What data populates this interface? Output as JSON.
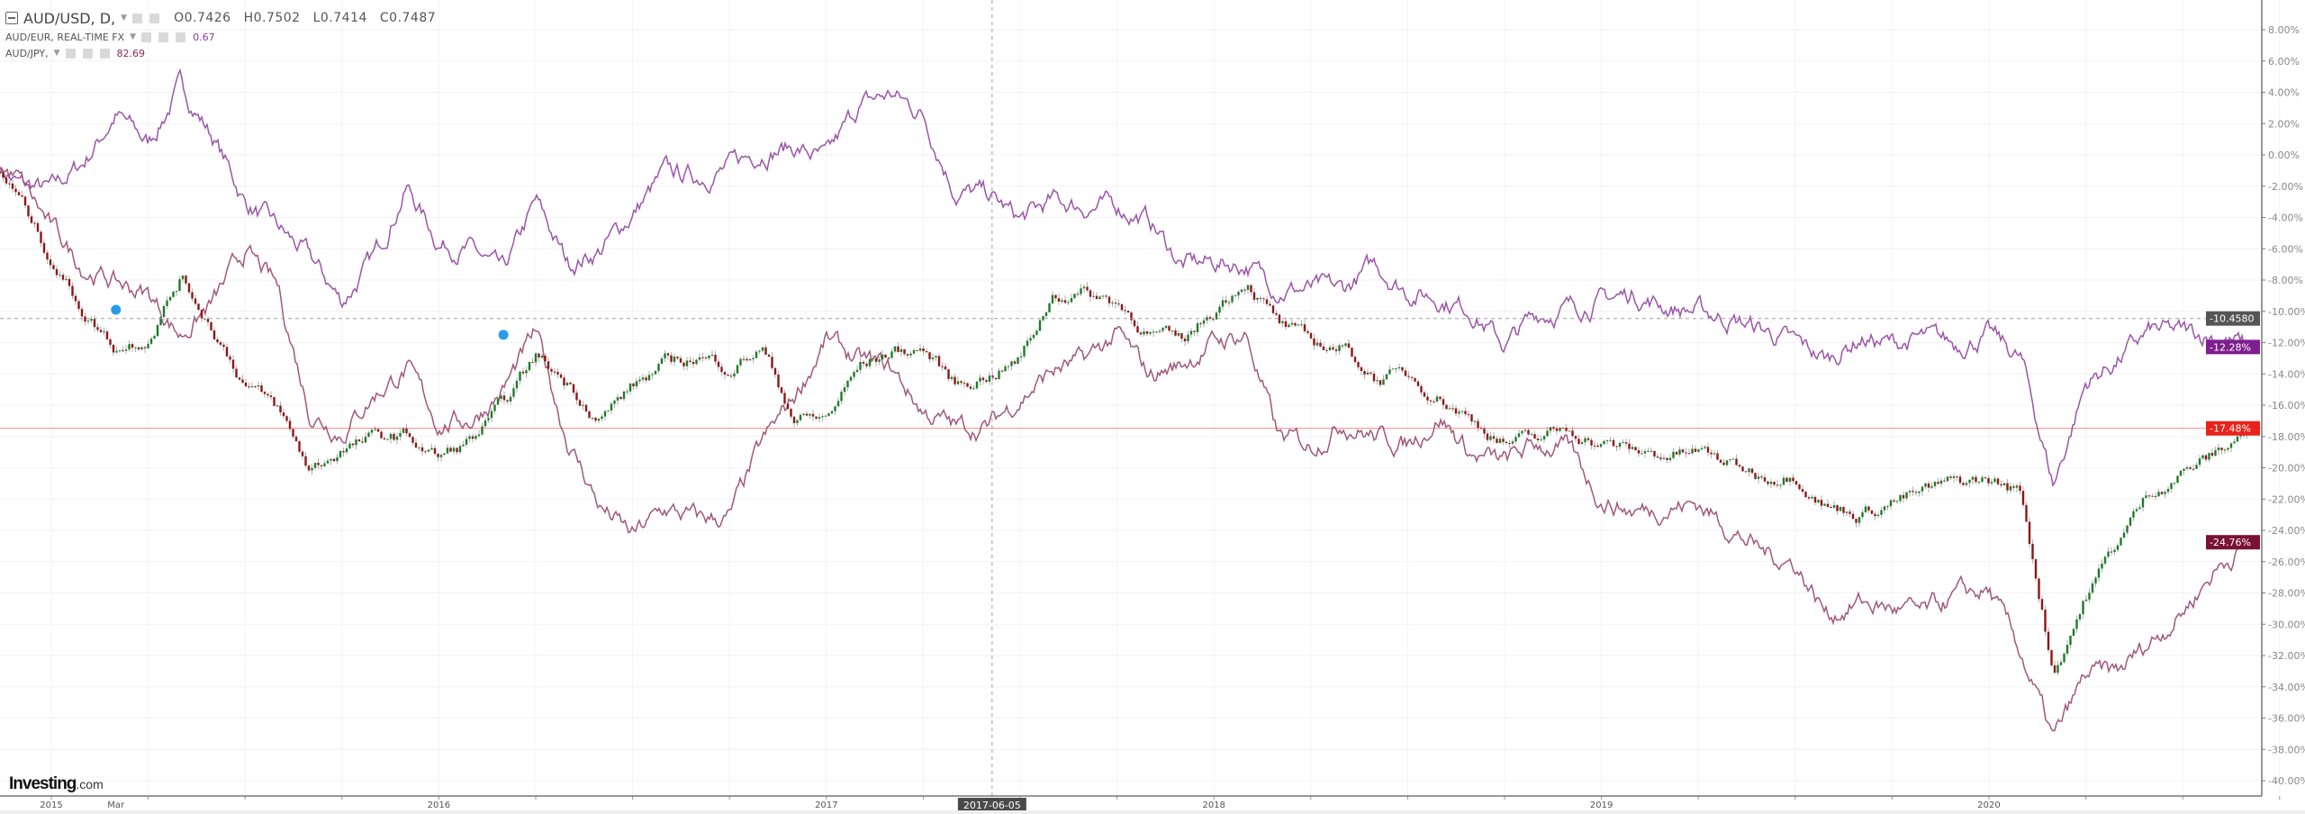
{
  "legend": {
    "main": {
      "symbol": "AUD/USD, D,",
      "open": "O0.7426",
      "high": "H0.7502",
      "low": "L0.7414",
      "close": "C0.7487"
    },
    "series2": {
      "symbol": "AUD/EUR, REAL-TIME FX",
      "value": "0.67"
    },
    "series3": {
      "symbol": "AUD/JPY,",
      "value": "82.69"
    }
  },
  "logo": {
    "brand": "Investing",
    "suffix": ".com"
  },
  "colors": {
    "up_candle": "#1f7a2a",
    "down_candle": "#8e1616",
    "wick": "#9a9a9a",
    "aud_eur": "#9b55a8",
    "aud_jpy": "#a0587b",
    "last_price_line": "#e8231b",
    "crosshair": "#9e9e9e",
    "event_marker": "#2a9be8"
  },
  "chart_data": {
    "type": "line",
    "yscale": "percent change",
    "ylim": [
      -41,
      9.5
    ],
    "yticks": [
      "8.00%",
      "6.00%",
      "4.00%",
      "2.00%",
      "0.00%",
      "-2.00%",
      "-4.00%",
      "-6.00%",
      "-8.00%",
      "-10.00%",
      "-12.00%",
      "-14.00%",
      "-16.00%",
      "-18.00%",
      "-20.00%",
      "-22.00%",
      "-24.00%",
      "-26.00%",
      "-28.00%",
      "-30.00%",
      "-32.00%",
      "-34.00%",
      "-36.00%",
      "-38.00%",
      "-40.00%"
    ],
    "xticks": [
      {
        "label": "2015",
        "date": "2015-01"
      },
      {
        "label": "Mar",
        "date": "2015-03"
      },
      {
        "label": "2016",
        "date": "2016-01"
      },
      {
        "label": "2017",
        "date": "2017-01"
      },
      {
        "label": "2018",
        "date": "2018-01"
      },
      {
        "label": "2019",
        "date": "2019-01"
      },
      {
        "label": "2020",
        "date": "2020-01"
      }
    ],
    "grid": true,
    "crosshair": {
      "date": "2017-06-05",
      "date_label": "2017-06-05",
      "value": -10.458,
      "value_label": "-10.4580"
    },
    "dates": [
      "2014-11",
      "2014-12",
      "2015-01",
      "2015-02",
      "2015-03",
      "2015-04",
      "2015-05",
      "2015-06",
      "2015-07",
      "2015-08",
      "2015-09",
      "2015-10",
      "2015-11",
      "2015-12",
      "2016-01",
      "2016-02",
      "2016-03",
      "2016-04",
      "2016-05",
      "2016-06",
      "2016-07",
      "2016-08",
      "2016-09",
      "2016-10",
      "2016-11",
      "2016-12",
      "2017-01",
      "2017-02",
      "2017-03",
      "2017-04",
      "2017-05",
      "2017-06",
      "2017-07",
      "2017-08",
      "2017-09",
      "2017-10",
      "2017-11",
      "2017-12",
      "2018-01",
      "2018-02",
      "2018-03",
      "2018-04",
      "2018-05",
      "2018-06",
      "2018-07",
      "2018-08",
      "2018-09",
      "2018-10",
      "2018-11",
      "2018-12",
      "2019-01",
      "2019-02",
      "2019-03",
      "2019-04",
      "2019-05",
      "2019-06",
      "2019-07",
      "2019-08",
      "2019-09",
      "2019-10",
      "2019-11",
      "2019-12",
      "2020-01",
      "2020-02",
      "2020-03",
      "2020-04",
      "2020-05",
      "2020-06",
      "2020-07",
      "2020-08",
      "2020-09"
    ],
    "series": [
      {
        "name": "AUD/USD",
        "style": "candlestick",
        "last_label": "-17.48%",
        "values": [
          0,
          -2.8,
          -6.6,
          -9.9,
          -12.3,
          -11.5,
          -7.8,
          -11.0,
          -14.6,
          -16.3,
          -20.2,
          -18.8,
          -18.2,
          -18.0,
          -19.4,
          -18.3,
          -16.2,
          -12.9,
          -14.6,
          -16.7,
          -14.8,
          -13.5,
          -12.9,
          -13.5,
          -12.3,
          -16.8,
          -16.9,
          -13.6,
          -12.6,
          -12.4,
          -14.7,
          -14.0,
          -13.1,
          -8.9,
          -8.8,
          -9.4,
          -11.3,
          -12.1,
          -9.9,
          -7.8,
          -10.8,
          -12.2,
          -12.3,
          -14.2,
          -14.2,
          -15.3,
          -16.9,
          -18.3,
          -18.3,
          -17.5,
          -18.4,
          -19.0,
          -19.2,
          -19.0,
          -19.8,
          -20.5,
          -20.2,
          -22.4,
          -22.9,
          -22.1,
          -21.6,
          -21.0,
          -20.8,
          -21.6,
          -33.0,
          -28.2,
          -24.7,
          -21.5,
          -20.2,
          -19.2,
          -17.48
        ]
      },
      {
        "name": "AUD/EUR",
        "style": "line",
        "last_label": "-12.28%",
        "values": [
          0,
          -1.9,
          -2.3,
          -0.5,
          2.6,
          0.7,
          4.4,
          1.2,
          -3.0,
          -4.7,
          -6.6,
          -9.4,
          -6.6,
          -2.0,
          -5.6,
          -6.1,
          -7.7,
          -3.1,
          -7.0,
          -6.1,
          -3.8,
          -1.2,
          -1.4,
          -0.8,
          0.3,
          0.5,
          -0.4,
          3.1,
          3.9,
          2.6,
          -2.3,
          -2.6,
          -4.2,
          -3.0,
          -3.3,
          -3.3,
          -4.2,
          -7.0,
          -6.9,
          -7.0,
          -8.5,
          -8.6,
          -8.7,
          -7.0,
          -8.7,
          -9.1,
          -9.9,
          -12.2,
          -10.2,
          -9.8,
          -9.3,
          -8.9,
          -9.7,
          -10.0,
          -10.5,
          -11.2,
          -12.1,
          -13.1,
          -11.7,
          -12.1,
          -11.8,
          -12.1,
          -11.5,
          -13.1,
          -21.1,
          -14.6,
          -13.1,
          -11.3,
          -11.4,
          -11.5,
          -12.28
        ]
      },
      {
        "name": "AUD/JPY",
        "style": "line",
        "last_label": "-24.76%",
        "values": [
          0,
          -1.6,
          -4.7,
          -7.2,
          -8.2,
          -8.9,
          -11.5,
          -9.5,
          -6.2,
          -8.5,
          -16.4,
          -17.7,
          -15.3,
          -13.7,
          -17.2,
          -16.9,
          -15.0,
          -11.5,
          -18.3,
          -22.5,
          -24.4,
          -22.7,
          -23.3,
          -23.2,
          -18.6,
          -15.5,
          -11.8,
          -13.2,
          -13.7,
          -16.4,
          -17.4,
          -17.4,
          -15.5,
          -13.8,
          -13.2,
          -11.5,
          -14.1,
          -13.4,
          -12.0,
          -11.5,
          -18.1,
          -18.6,
          -17.0,
          -18.0,
          -18.5,
          -16.7,
          -19.2,
          -19.7,
          -18.5,
          -18.9,
          -22.0,
          -22.8,
          -22.5,
          -22.3,
          -23.9,
          -25.4,
          -26.1,
          -29.4,
          -28.6,
          -29.0,
          -29.4,
          -28.2,
          -27.9,
          -31.9,
          -37.5,
          -33.3,
          -33.1,
          -31.1,
          -29.1,
          -26.5,
          -24.76
        ]
      }
    ],
    "events": [
      {
        "date": "2015-03",
        "value": -9.9
      },
      {
        "date": "2016-03",
        "value": -11.5
      }
    ]
  }
}
